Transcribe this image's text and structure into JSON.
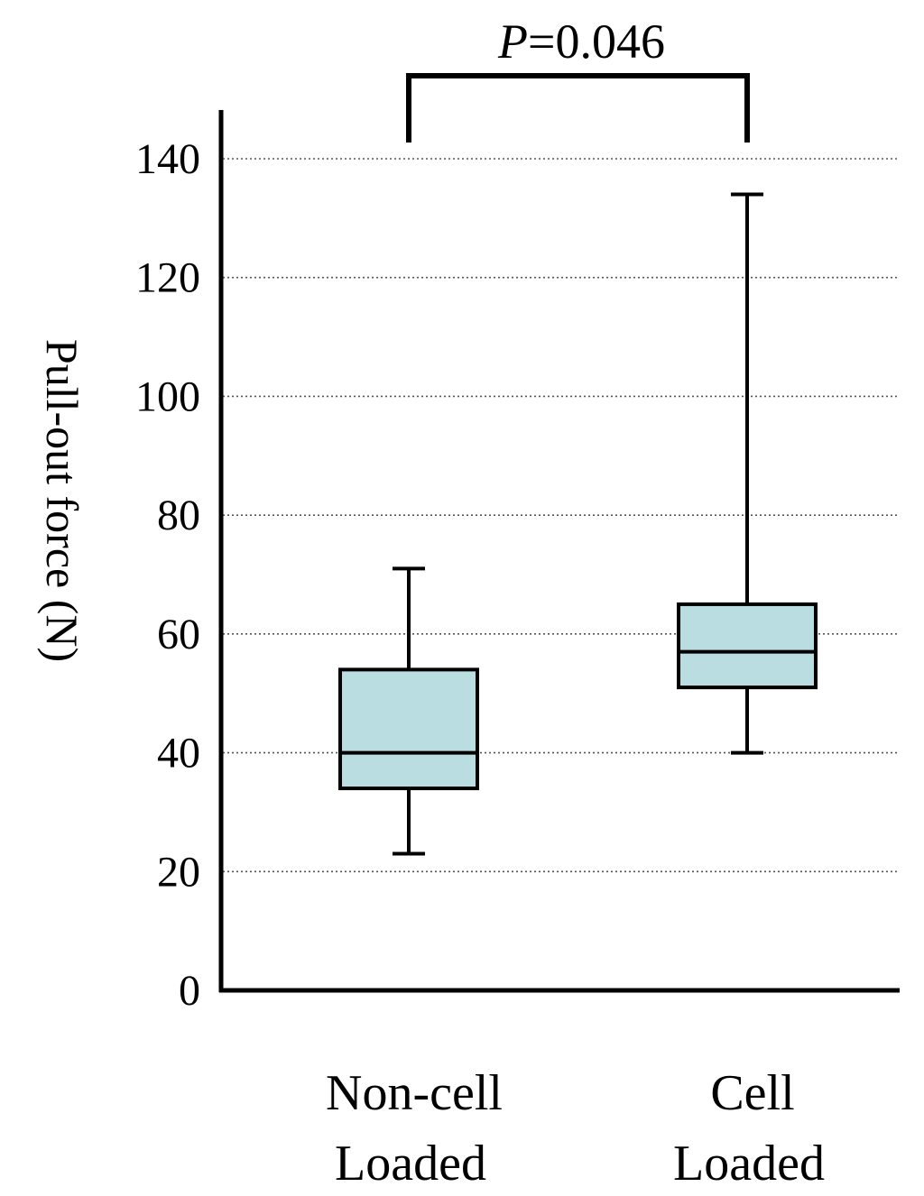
{
  "chart_data": {
    "type": "box",
    "title": "",
    "xlabel": "",
    "ylabel": "Pull-out force (N)",
    "ylim": [
      0,
      140
    ],
    "yticks": [
      0,
      20,
      40,
      60,
      80,
      100,
      120,
      140
    ],
    "grid": {
      "y": true,
      "style": "dotted"
    },
    "categories": [
      {
        "line1": "Non-cell",
        "line2": "Loaded"
      },
      {
        "line1": "Cell",
        "line2": "Loaded"
      }
    ],
    "boxes": [
      {
        "min": 23,
        "q1": 34,
        "median": 40,
        "q3": 54,
        "max": 71
      },
      {
        "min": 40,
        "q1": 51,
        "median": 57,
        "q3": 65,
        "max": 134
      }
    ],
    "annotation": {
      "italic": "P",
      "rest": "=0.046"
    },
    "colors": {
      "box_fill": "#b9dde0",
      "stroke": "#000000",
      "grid": "#555555"
    }
  }
}
